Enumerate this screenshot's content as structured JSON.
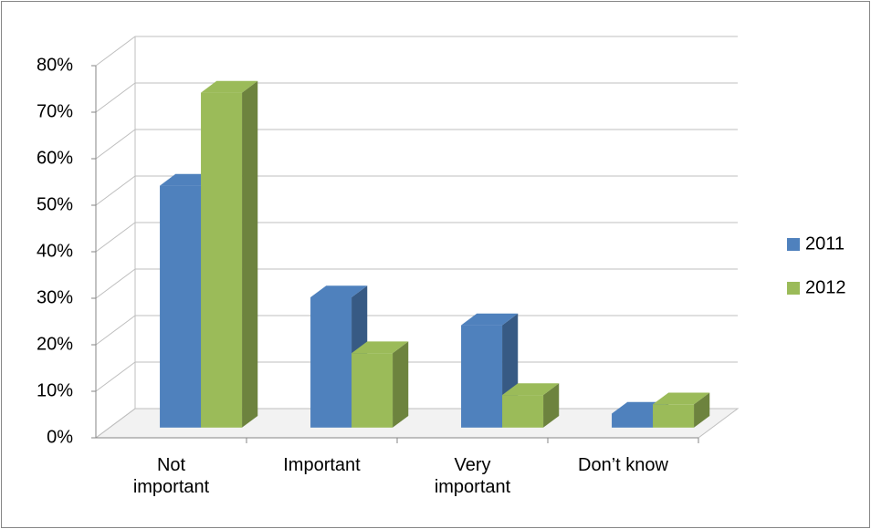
{
  "chart_data": {
    "type": "bar3d",
    "categories": [
      "Not important",
      "Important",
      "Very important",
      "Don’t know"
    ],
    "series": [
      {
        "name": "2011",
        "color": "#4f81bd",
        "values": [
          52,
          28,
          22,
          3
        ]
      },
      {
        "name": "2012",
        "color": "#9bbb59",
        "values": [
          72,
          16,
          7,
          5
        ]
      }
    ],
    "ylim": [
      0,
      80
    ],
    "yticks": [
      {
        "value": 0,
        "label": "0%"
      },
      {
        "value": 10,
        "label": "10%"
      },
      {
        "value": 20,
        "label": "20%"
      },
      {
        "value": 30,
        "label": "30%"
      },
      {
        "value": 40,
        "label": "40%"
      },
      {
        "value": 50,
        "label": "50%"
      },
      {
        "value": 60,
        "label": "60%"
      },
      {
        "value": 70,
        "label": "70%"
      },
      {
        "value": 80,
        "label": "80%"
      }
    ],
    "grid": true,
    "legend": "right"
  }
}
